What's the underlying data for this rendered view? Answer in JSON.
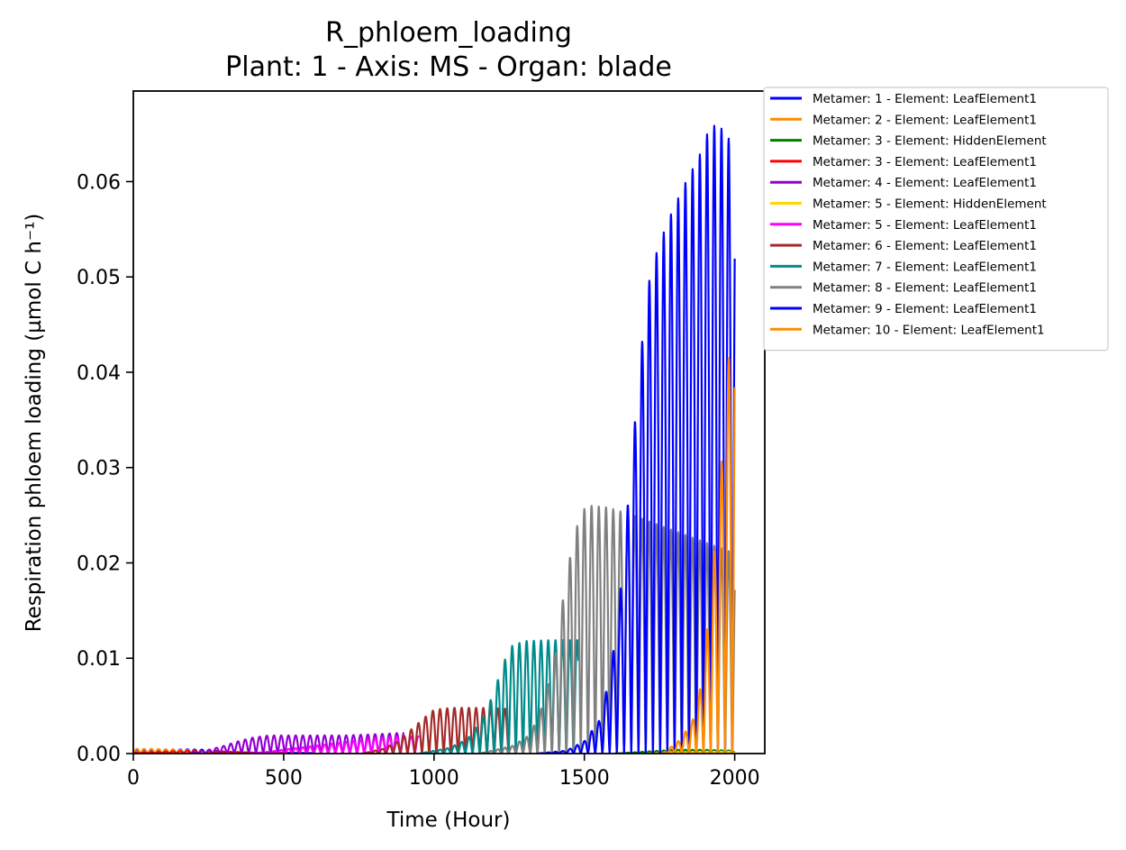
{
  "chart_data": {
    "type": "line",
    "title": "R_phloem_loading",
    "subtitle": "Plant: 1 - Axis: MS - Organ: blade",
    "xlabel": "Time (Hour)",
    "ylabel": "Respiration phloem loading (µmol C h⁻¹)",
    "xlim": [
      0,
      2100
    ],
    "ylim": [
      0,
      0.0695
    ],
    "x_ticks": [
      "0",
      "500",
      "1000",
      "1500",
      "2000"
    ],
    "x_tick_values": [
      0,
      500,
      1000,
      1500,
      2000
    ],
    "y_ticks": [
      "0.00",
      "0.01",
      "0.02",
      "0.03",
      "0.04",
      "0.05",
      "0.06"
    ],
    "y_tick_values": [
      0,
      0.01,
      0.02,
      0.03,
      0.04,
      0.05,
      0.06
    ],
    "grid": false,
    "legend_position": "outside-top-right",
    "period_hours": 24,
    "series": [
      {
        "name": "Metamer: 1 - Element: LeafElement1",
        "color": "#0000ff",
        "amplitude": {
          "x": [
            0,
            60,
            180,
            240,
            300,
            400,
            600
          ],
          "y": [
            0.0004,
            0.0004,
            0.00045,
            0.0004,
            0.0002,
            0.0001,
            5e-05
          ]
        }
      },
      {
        "name": "Metamer: 2 - Element: LeafElement1",
        "color": "#ff8c00",
        "amplitude": {
          "x": [
            0,
            60,
            160,
            220,
            300,
            400
          ],
          "y": [
            0.0005,
            0.0005,
            0.0004,
            0.0003,
            0.0001,
            5e-05
          ]
        }
      },
      {
        "name": "Metamer: 3 - Element: HiddenElement",
        "color": "#008000",
        "amplitude": {
          "x": [
            1600,
            1700,
            1800,
            1900,
            2000
          ],
          "y": [
            0,
            0.0002,
            0.0004,
            0.0004,
            0.0003
          ]
        }
      },
      {
        "name": "Metamer: 3 - Element: LeafElement1",
        "color": "#ff0000",
        "amplitude": {
          "x": [
            0,
            100,
            200,
            300,
            400,
            500
          ],
          "y": [
            0.0001,
            0.0002,
            0.0003,
            0.0002,
            0.0001,
            5e-05
          ]
        }
      },
      {
        "name": "Metamer: 4 - Element: LeafElement1",
        "color": "#9400d3",
        "amplitude": {
          "x": [
            180,
            250,
            300,
            350,
            400,
            450,
            520,
            600,
            700,
            780,
            850,
            900
          ],
          "y": [
            0,
            0.0004,
            0.0008,
            0.0013,
            0.0017,
            0.0019,
            0.0019,
            0.0019,
            0.0019,
            0.002,
            0.0021,
            0.0022
          ]
        }
      },
      {
        "name": "Metamer: 5 - Element: HiddenElement",
        "color": "#ffd700",
        "amplitude": {
          "x": [
            1700,
            1800,
            1900,
            2000
          ],
          "y": [
            0,
            0.0001,
            0.0002,
            0.0002
          ]
        }
      },
      {
        "name": "Metamer: 5 - Element: LeafElement1",
        "color": "#ff00ff",
        "amplitude": {
          "x": [
            380,
            450,
            520,
            600,
            680,
            750,
            800,
            850,
            900,
            950
          ],
          "y": [
            0,
            0.0002,
            0.0005,
            0.0008,
            0.0011,
            0.0014,
            0.0016,
            0.0017,
            0.0018,
            0.0018
          ]
        }
      },
      {
        "name": "Metamer: 6 - Element: LeafElement1",
        "color": "#a52a2a",
        "amplitude": {
          "x": [
            760,
            830,
            880,
            930,
            980,
            1000,
            1060,
            1150,
            1250
          ],
          "y": [
            0,
            0.0005,
            0.0013,
            0.0027,
            0.0041,
            0.0046,
            0.0048,
            0.0048,
            0.0047
          ]
        }
      },
      {
        "name": "Metamer: 7 - Element: LeafElement1",
        "color": "#008b8b",
        "amplitude": {
          "x": [
            950,
            1050,
            1110,
            1160,
            1200,
            1230,
            1260,
            1300,
            1390,
            1480
          ],
          "y": [
            0,
            0.0006,
            0.0015,
            0.0035,
            0.0065,
            0.0095,
            0.0113,
            0.0118,
            0.0119,
            0.0119
          ]
        }
      },
      {
        "name": "Metamer: 8 - Element: LeafElement1",
        "color": "#808080",
        "amplitude": {
          "x": [
            1150,
            1260,
            1320,
            1360,
            1400,
            1430,
            1460,
            1490,
            1520,
            1580,
            1600,
            1660,
            2000
          ],
          "y": [
            0,
            0.0008,
            0.002,
            0.005,
            0.0095,
            0.0165,
            0.022,
            0.0255,
            0.026,
            0.0258,
            0.0256,
            0.025,
            0.021
          ]
        }
      },
      {
        "name": "Metamer: 9 - Element: LeafElement1",
        "color": "#0000ff",
        "amplitude": {
          "x": [
            1340,
            1440,
            1500,
            1550,
            1580,
            1610,
            1640,
            1670,
            1700,
            1720,
            1750,
            1780,
            1830,
            1880,
            1920,
            1960,
            2000
          ],
          "y": [
            0,
            0.0003,
            0.0013,
            0.0035,
            0.0075,
            0.0135,
            0.0245,
            0.0355,
            0.046,
            0.0505,
            0.0535,
            0.056,
            0.0595,
            0.0625,
            0.066,
            0.0655,
            0.0635
          ]
        }
      },
      {
        "name": "Metamer: 10 - Element: LeafElement1",
        "color": "#ff8c00",
        "amplitude": {
          "x": [
            1760,
            1820,
            1860,
            1890,
            1910,
            1930,
            1950,
            1970,
            1985,
            2000
          ],
          "y": [
            0,
            0.0015,
            0.0035,
            0.0075,
            0.0135,
            0.0205,
            0.027,
            0.0385,
            0.043,
            0.047
          ]
        }
      }
    ]
  }
}
